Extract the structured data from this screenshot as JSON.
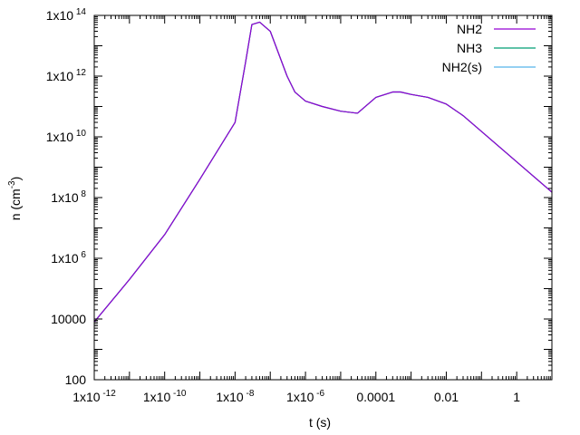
{
  "chart_data": {
    "type": "line",
    "title": "",
    "xlabel": "t (s)",
    "ylabel": "n (cm",
    "ylabel_suffix": "-3",
    "ylabel_close": ")",
    "x_scale": "log",
    "y_scale": "log",
    "xlim": [
      1e-12,
      10
    ],
    "ylim": [
      100,
      100000000000000.0
    ],
    "grid": false,
    "legend_position": "top-right",
    "x_ticks": [
      {
        "value": 1e-12,
        "base": "1x10",
        "exp": "-12"
      },
      {
        "value": 1e-10,
        "base": "1x10",
        "exp": "-10"
      },
      {
        "value": 1e-08,
        "base": "1x10",
        "exp": "-8"
      },
      {
        "value": 1e-06,
        "base": "1x10",
        "exp": "-6"
      },
      {
        "value": 0.0001,
        "base": "0.0001",
        "exp": ""
      },
      {
        "value": 0.01,
        "base": "0.01",
        "exp": ""
      },
      {
        "value": 1,
        "base": "1",
        "exp": ""
      }
    ],
    "y_ticks": [
      {
        "value": 100.0,
        "base": "100",
        "exp": ""
      },
      {
        "value": 10000.0,
        "base": "10000",
        "exp": ""
      },
      {
        "value": 1000000.0,
        "base": "1x10",
        "exp": "6"
      },
      {
        "value": 100000000.0,
        "base": "1x10",
        "exp": "8"
      },
      {
        "value": 10000000000.0,
        "base": "1x10",
        "exp": "10"
      },
      {
        "value": 1000000000000.0,
        "base": "1x10",
        "exp": "12"
      },
      {
        "value": 100000000000000.0,
        "base": "1x10",
        "exp": "14"
      }
    ],
    "series": [
      {
        "name": "NH2",
        "color": "#9400d3",
        "x": [
          1e-12,
          1e-11,
          1e-10,
          1e-09,
          1e-08,
          2e-08,
          3e-08,
          5e-08,
          1e-07,
          3e-07,
          5e-07,
          1e-06,
          3e-06,
          1e-05,
          3e-05,
          0.0001,
          0.0003,
          0.0005,
          0.001,
          0.003,
          0.01,
          0.03,
          0.1,
          1,
          10
        ],
        "y": [
          8000.0,
          200000.0,
          6000000.0,
          400000000.0,
          30000000000.0,
          3000000000000.0,
          50000000000000.0,
          60000000000000.0,
          30000000000000.0,
          1000000000000.0,
          300000000000.0,
          150000000000.0,
          100000000000.0,
          70000000000.0,
          60000000000.0,
          200000000000.0,
          300000000000.0,
          300000000000.0,
          250000000000.0,
          200000000000.0,
          120000000000.0,
          50000000000.0,
          15000000000.0,
          1500000000.0,
          150000000.0
        ]
      },
      {
        "name": "NH3",
        "color": "#009e73",
        "x": [
          1e-12,
          1e-11,
          1e-10,
          1e-09,
          1e-08,
          2e-08,
          3e-08,
          5e-08,
          1e-07,
          3e-07,
          5e-07,
          1e-06,
          3e-06,
          1e-05,
          3e-05,
          0.0001,
          0.0003,
          0.0005,
          0.001,
          0.003,
          0.01,
          0.03,
          0.1,
          1,
          10
        ],
        "y": [
          8000.0,
          200000.0,
          6000000.0,
          400000000.0,
          30000000000.0,
          3000000000000.0,
          50000000000000.0,
          60000000000000.0,
          30000000000000.0,
          1000000000000.0,
          300000000000.0,
          150000000000.0,
          100000000000.0,
          70000000000.0,
          60000000000.0,
          200000000000.0,
          300000000000.0,
          300000000000.0,
          250000000000.0,
          200000000000.0,
          120000000000.0,
          50000000000.0,
          15000000000.0,
          1500000000.0,
          150000000.0
        ]
      },
      {
        "name": "NH2(s)",
        "color": "#56b4e9",
        "x": [
          1e-12,
          1e-11,
          1e-10,
          1e-09,
          1e-08,
          2e-08,
          3e-08,
          5e-08,
          1e-07,
          3e-07,
          5e-07,
          1e-06,
          3e-06,
          1e-05,
          3e-05,
          0.0001,
          0.0003,
          0.0005,
          0.001,
          0.003,
          0.01,
          0.03,
          0.1,
          1,
          10
        ],
        "y": [
          8000.0,
          200000.0,
          6000000.0,
          400000000.0,
          30000000000.0,
          3000000000000.0,
          50000000000000.0,
          60000000000000.0,
          30000000000000.0,
          1000000000000.0,
          300000000000.0,
          150000000000.0,
          100000000000.0,
          70000000000.0,
          60000000000.0,
          200000000000.0,
          300000000000.0,
          300000000000.0,
          250000000000.0,
          200000000000.0,
          120000000000.0,
          50000000000.0,
          15000000000.0,
          1500000000.0,
          150000000.0
        ]
      }
    ],
    "draw_order": [
      2,
      1,
      0
    ]
  }
}
